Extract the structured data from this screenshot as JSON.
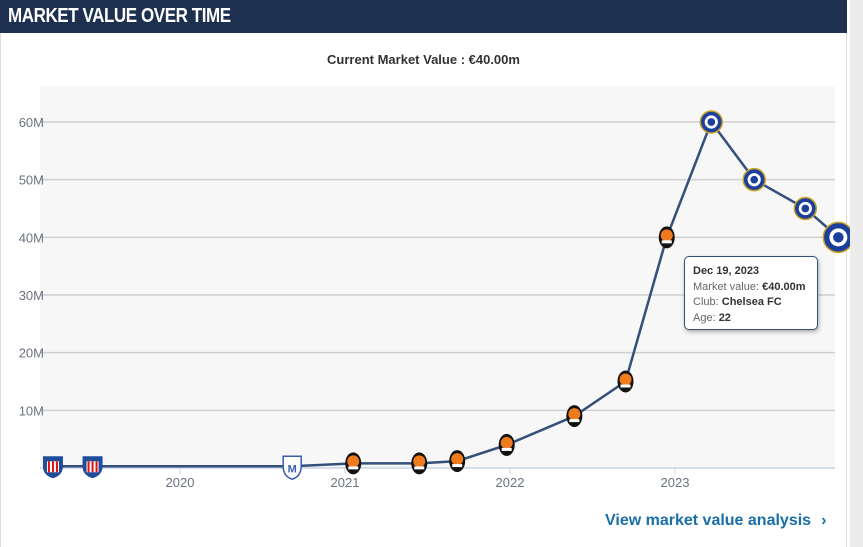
{
  "header": {
    "title": "MARKET VALUE OVER TIME"
  },
  "current_value": "Current Market Value : €40.00m",
  "tooltip": {
    "date": "Dec 19, 2023",
    "mv_label": "Market value: ",
    "mv": "€40.00m",
    "club_label": "Club: ",
    "club": "Chelsea FC",
    "age_label": "Age: ",
    "age": "22"
  },
  "link": {
    "label": "View market value analysis",
    "icon": "chevron-right-icon"
  },
  "chart_data": {
    "type": "line",
    "title": "Market value over time",
    "xlabel": "",
    "ylabel": "",
    "xlim": [
      2019.05,
      2024.0
    ],
    "ylim": [
      0,
      65
    ],
    "y_unit": "M EUR",
    "x_ticks": [
      2020,
      2021,
      2022,
      2023
    ],
    "x_tick_labels": [
      "2020",
      "2021",
      "2022",
      "2023"
    ],
    "y_ticks": [
      10,
      20,
      30,
      40,
      50,
      60
    ],
    "y_tick_labels": [
      "10M",
      "20M",
      "30M",
      "40M",
      "50M",
      "60M"
    ],
    "grid": true,
    "line_color": "#34507a",
    "points": [
      {
        "x": 2019.23,
        "y": 0.3,
        "club": "sunderland-style"
      },
      {
        "x": 2019.47,
        "y": 0.3,
        "club": "sunderland-style"
      },
      {
        "x": 2020.68,
        "y": 0.3,
        "club": "mariupol"
      },
      {
        "x": 2021.05,
        "y": 0.8,
        "club": "shakhtar"
      },
      {
        "x": 2021.45,
        "y": 0.8,
        "club": "shakhtar"
      },
      {
        "x": 2021.68,
        "y": 1.2,
        "club": "shakhtar"
      },
      {
        "x": 2021.98,
        "y": 4,
        "club": "shakhtar"
      },
      {
        "x": 2022.39,
        "y": 9,
        "club": "shakhtar"
      },
      {
        "x": 2022.7,
        "y": 15,
        "club": "shakhtar"
      },
      {
        "x": 2022.95,
        "y": 40,
        "club": "shakhtar"
      },
      {
        "x": 2023.22,
        "y": 60,
        "club": "chelsea"
      },
      {
        "x": 2023.48,
        "y": 50,
        "club": "chelsea"
      },
      {
        "x": 2023.79,
        "y": 45,
        "club": "chelsea"
      },
      {
        "x": 2023.99,
        "y": 40,
        "club": "chelsea"
      }
    ]
  }
}
